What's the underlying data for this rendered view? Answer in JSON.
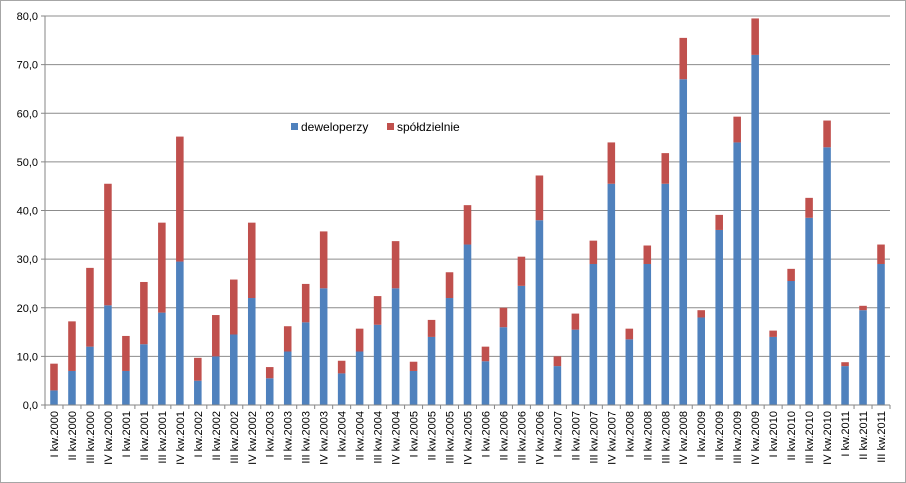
{
  "chart_data": {
    "type": "bar",
    "stacked": true,
    "title": "",
    "xlabel": "",
    "ylabel": "",
    "ylim": [
      0,
      80
    ],
    "yticks": [
      0,
      10,
      20,
      30,
      40,
      50,
      60,
      70,
      80
    ],
    "ytick_labels": [
      "0,0",
      "10,0",
      "20,0",
      "30,0",
      "40,0",
      "50,0",
      "60,0",
      "70,0",
      "80,0"
    ],
    "grid": true,
    "legend_position": "center-left",
    "categories": [
      "I kw.2000",
      "II kw.2000",
      "III kw.2000",
      "IV kw.2000",
      "I kw.2001",
      "II kw.2001",
      "III kw.2001",
      "IV kw.2001",
      "I kw.2002",
      "II kw.2002",
      "III kw.2002",
      "IV kw.2002",
      "I kw.2003",
      "II kw.2003",
      "III kw.2003",
      "IV kw.2003",
      "I kw.2004",
      "II kw.2004",
      "III kw.2004",
      "IV kw.2004",
      "I kw.2005",
      "II kw.2005",
      "III kw.2005",
      "IV kw.2005",
      "I kw.2006",
      "II kw.2006",
      "III kw.2006",
      "IV kw.2006",
      "I kw.2007",
      "II kw.2007",
      "III kw.2007",
      "IV kw.2007",
      "I kw.2008",
      "II kw.2008",
      "III kw.2008",
      "IV kw.2008",
      "I kw.2009",
      "II kw.2009",
      "III kw.2009",
      "IV kw.2009",
      "I kw.2010",
      "II kw.2010",
      "III kw.2010",
      "IV kw.2010",
      "I kw.2011",
      "II kw.2011",
      "III kw.2011"
    ],
    "series": [
      {
        "name": "deweloperzy",
        "color": "#4f81bd",
        "values": [
          3.0,
          7.0,
          12.0,
          20.5,
          7.0,
          12.5,
          19.0,
          29.5,
          5.0,
          10.0,
          14.5,
          22.0,
          5.5,
          11.0,
          17.0,
          24.0,
          6.5,
          11.0,
          16.5,
          24.0,
          7.0,
          14.0,
          22.0,
          33.0,
          9.0,
          16.0,
          24.5,
          38.0,
          8.0,
          15.5,
          29.0,
          45.5,
          13.5,
          29.0,
          45.5,
          67.0,
          18.0,
          36.0,
          54.0,
          72.0,
          14.0,
          25.5,
          38.5,
          53.0,
          8.0,
          19.5,
          29.0
        ]
      },
      {
        "name": "spółdzielnie",
        "color": "#c0504d",
        "values": [
          5.5,
          10.2,
          16.2,
          25.0,
          7.2,
          12.8,
          18.5,
          25.7,
          4.7,
          8.5,
          11.3,
          15.5,
          2.3,
          5.2,
          7.9,
          11.7,
          2.6,
          4.7,
          5.9,
          9.7,
          1.9,
          3.5,
          5.3,
          8.1,
          3.0,
          4.0,
          6.0,
          9.2,
          2.0,
          3.3,
          4.8,
          8.5,
          2.2,
          3.8,
          6.3,
          8.5,
          1.5,
          3.1,
          5.3,
          7.5,
          1.3,
          2.5,
          4.1,
          5.5,
          0.8,
          0.9,
          4.0
        ]
      }
    ]
  }
}
